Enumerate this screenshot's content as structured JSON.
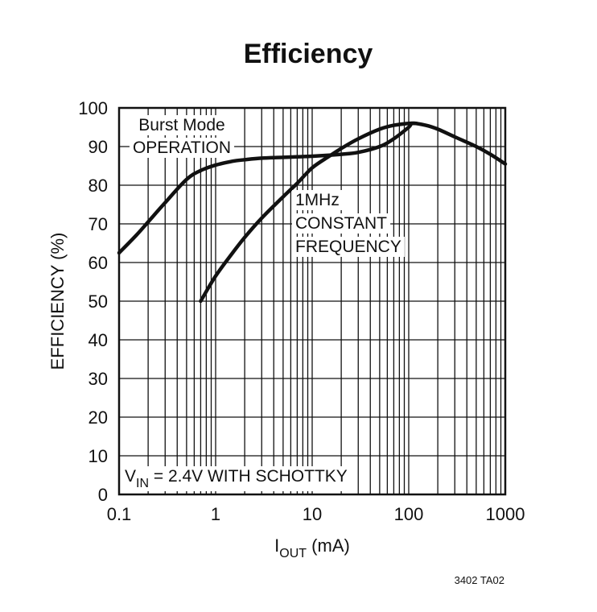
{
  "chart_data": {
    "type": "line",
    "title": "Efficiency",
    "xlabel": {
      "main": "I",
      "sub": "OUT",
      "rest": " (mA)"
    },
    "ylabel": "EFFICIENCY (%)",
    "xscale": "log",
    "xlim": [
      0.1,
      1000
    ],
    "ylim": [
      0,
      100
    ],
    "x_ticks": [
      0.1,
      1,
      10,
      100,
      1000
    ],
    "x_tick_labels": [
      "0.1",
      "1",
      "10",
      "100",
      "1000"
    ],
    "y_ticks": [
      0,
      10,
      20,
      30,
      40,
      50,
      60,
      70,
      80,
      90,
      100
    ],
    "y_tick_labels": [
      "0",
      "10",
      "20",
      "30",
      "40",
      "50",
      "60",
      "70",
      "80",
      "90",
      "100"
    ],
    "grid": true,
    "series": [
      {
        "name": "Burst Mode OPERATION",
        "x": [
          0.1,
          0.15,
          0.2,
          0.3,
          0.5,
          0.7,
          1,
          1.5,
          2,
          3,
          5,
          10,
          20,
          30,
          50,
          70,
          100,
          110,
          150,
          200,
          300,
          500,
          700,
          1000
        ],
        "y": [
          62.5,
          67,
          70.5,
          75.5,
          81.5,
          83.8,
          85.2,
          86.2,
          86.6,
          87,
          87.2,
          87.5,
          88,
          88.5,
          90,
          92,
          95,
          96,
          95.5,
          94.5,
          92.5,
          90,
          88,
          85.5
        ]
      },
      {
        "name": "1MHz CONSTANT FREQUENCY",
        "x": [
          0.7,
          1,
          1.5,
          2,
          3,
          5,
          7,
          10,
          15,
          20,
          30,
          50,
          70,
          100,
          120
        ],
        "y": [
          50,
          56.5,
          62.5,
          66.5,
          71.5,
          77,
          80.5,
          84.5,
          87.5,
          89.5,
          92,
          94.5,
          95.5,
          96,
          96
        ]
      }
    ],
    "annotations": {
      "burst": [
        "Burst Mode",
        "OPERATION"
      ],
      "constant": [
        "1MHz",
        "CONSTANT",
        "FREQUENCY"
      ],
      "condition": {
        "main": "V",
        "sub": "IN",
        "rest": " = 2.4V WITH SCHOTTKY"
      }
    },
    "figure_id": "3402 TA02"
  }
}
